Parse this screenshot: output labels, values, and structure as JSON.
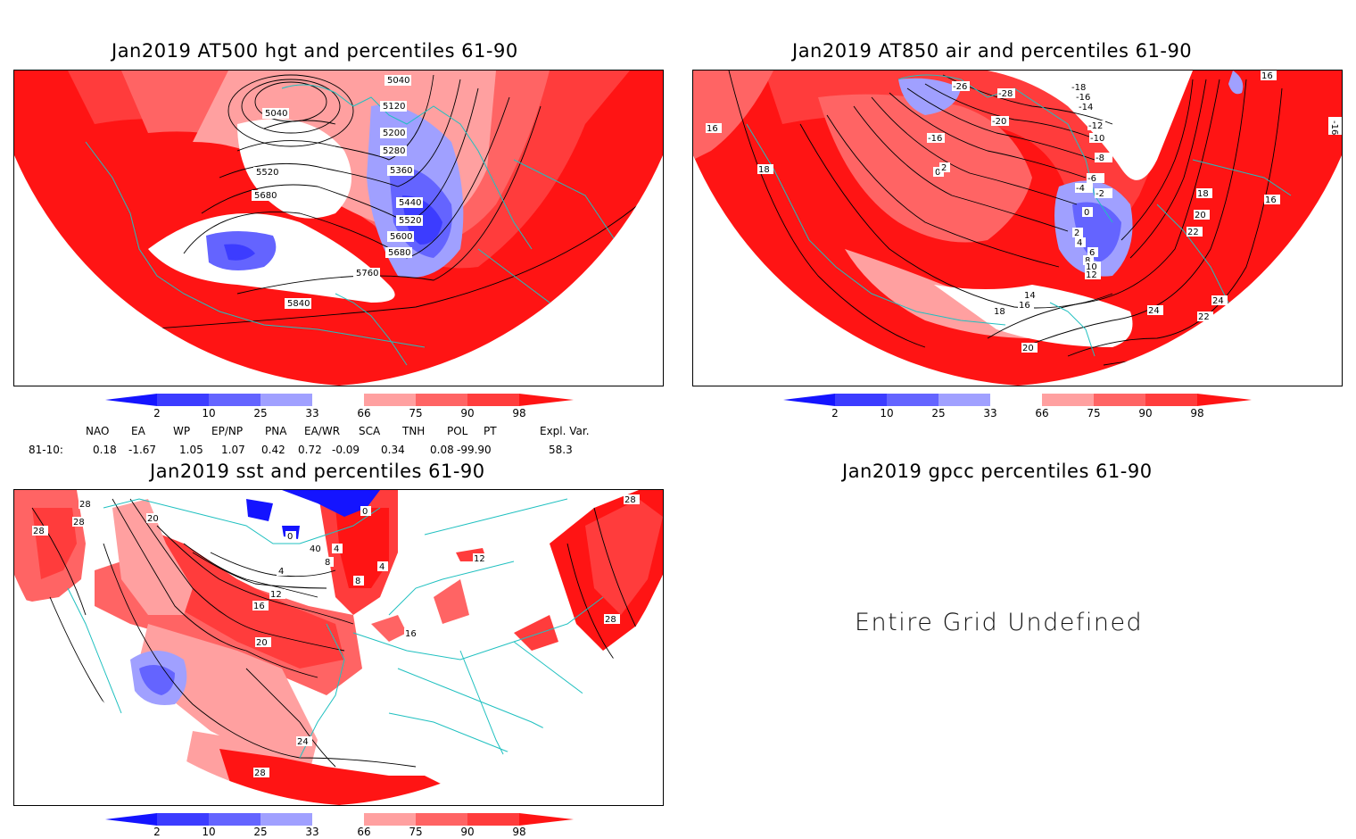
{
  "panels": {
    "hgt500": {
      "title": "Jan2019 AT500 hgt and percentiles 61-90",
      "contour_labels": [
        "5040",
        "5040",
        "5120",
        "5200",
        "5280",
        "5360",
        "5440",
        "5520",
        "5600",
        "5680",
        "5520",
        "5680",
        "5760",
        "5840"
      ]
    },
    "air850": {
      "title": "Jan2019 AT850 air and percentiles 61-90",
      "contour_labels": [
        "-26",
        "-28",
        "-18",
        "-16",
        "-14",
        "-20",
        "-12",
        "-10",
        "-16",
        "-8",
        "0",
        "2",
        "-6",
        "-4",
        "-2",
        "0",
        "2",
        "4",
        "6",
        "8",
        "10",
        "12",
        "14",
        "16",
        "18",
        "20",
        "16",
        "18",
        "18",
        "20",
        "22",
        "16",
        "24",
        "24",
        "22",
        "16",
        "-16"
      ]
    },
    "sst": {
      "title": "Jan2019 sst and percentiles 61-90",
      "contour_labels": [
        "28",
        "28",
        "28",
        "20",
        "0",
        "0",
        "40",
        "4",
        "8",
        "4",
        "4",
        "8",
        "12",
        "16",
        "12",
        "16",
        "20",
        "24",
        "28",
        "28",
        "28"
      ]
    },
    "gpcc": {
      "title": "Jan2019 gpcc percentiles 61-90",
      "message": "Entire Grid Undefined"
    }
  },
  "colorbar": {
    "labels": [
      "2",
      "10",
      "25",
      "33",
      "66",
      "75",
      "90",
      "98"
    ],
    "colors": [
      "#1414ff",
      "#3c3cff",
      "#6464ff",
      "#a0a0ff",
      "#ffffff",
      "#ffa0a0",
      "#ff6464",
      "#ff3c3c",
      "#ff1414"
    ]
  },
  "indices": {
    "headers": [
      "NAO",
      "EA",
      "WP",
      "EP/NP",
      "PNA",
      "EA/WR",
      "SCA",
      "TNH",
      "POL",
      "PT",
      "Expl. Var."
    ],
    "period": "81-10:",
    "values": [
      "0.18",
      "-1.67",
      "1.05",
      "1.07",
      "0.42",
      "0.72",
      "-0.09",
      "0.34",
      "0.08",
      "-99.90",
      "58.3"
    ]
  },
  "colors": {
    "coast": "#20c0c0",
    "red": "#ff0000",
    "blue": "#4040ff"
  }
}
